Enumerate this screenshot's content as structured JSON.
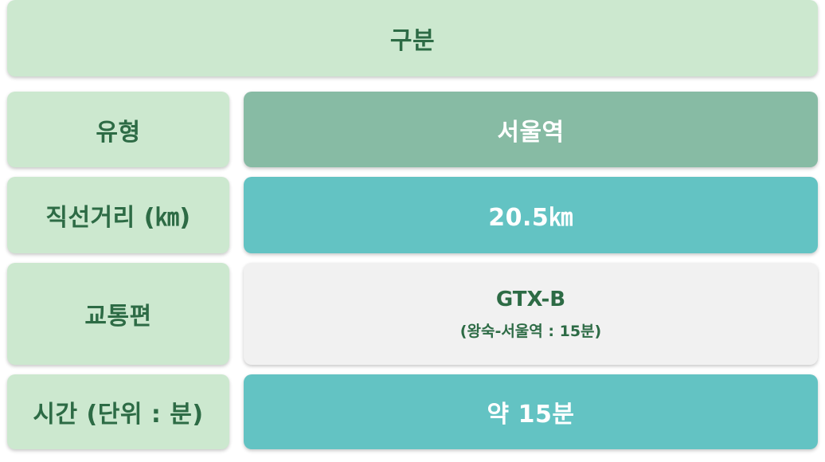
{
  "header": {
    "label": "구분"
  },
  "rows": {
    "type": {
      "label": "유형",
      "value": "서울역"
    },
    "distance": {
      "label": "직선거리 (㎞)",
      "value": "20.5㎞"
    },
    "transport": {
      "label": "교통편",
      "value": "GTX-B",
      "detail": "(왕숙-서울역 : 15분)"
    },
    "time": {
      "label": "시간 (단위 : 분)",
      "value": "약 15분"
    }
  },
  "colors": {
    "light_green": "#cce8cf",
    "sage_green": "#87bba4",
    "teal": "#63c3c3",
    "grey": "#f1f1f1",
    "dark_green_text": "#2d6b45"
  }
}
